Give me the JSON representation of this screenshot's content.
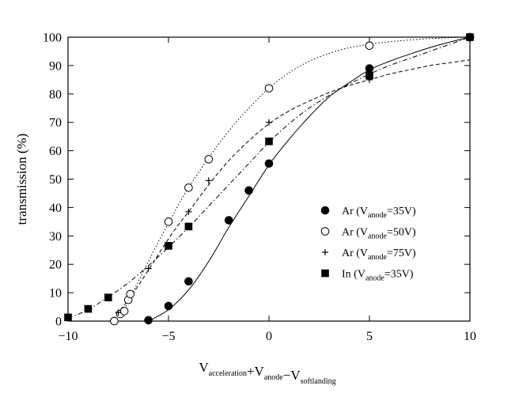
{
  "chart_data": {
    "type": "scatter",
    "title": "",
    "xlabel": {
      "parts": [
        {
          "text": "V",
          "sub": "acceleration"
        },
        {
          "text": "+V",
          "sub": "anode"
        },
        {
          "text": "−V",
          "sub": "softlanding"
        }
      ]
    },
    "ylabel": "transmission (%)",
    "xlim": [
      -10,
      10
    ],
    "ylim": [
      0,
      100
    ],
    "x_ticks": [
      -10,
      -5,
      0,
      5,
      10
    ],
    "x_tick_labels": [
      "−10",
      "−5",
      "0",
      "5",
      "10"
    ],
    "y_ticks": [
      0,
      10,
      20,
      30,
      40,
      50,
      60,
      70,
      80,
      90,
      100
    ],
    "y_tick_labels": [
      "0",
      "10",
      "20",
      "30",
      "40",
      "50",
      "60",
      "70",
      "80",
      "90",
      "100"
    ],
    "grid": false,
    "legend_position": "right-center",
    "series": [
      {
        "name": "Ar (Vanode=35V)",
        "legend": {
          "prefix": "Ar (V",
          "sub": "anode",
          "suffix": "=35V)"
        },
        "marker": "filled-circle",
        "line": "solid",
        "points": [
          [
            -6,
            0.3
          ],
          [
            -5,
            5.3
          ],
          [
            -4,
            14
          ],
          [
            -2,
            35.5
          ],
          [
            -1,
            46
          ],
          [
            0,
            55.5
          ],
          [
            5,
            89
          ],
          [
            10,
            100
          ]
        ],
        "fit": [
          [
            -6,
            0
          ],
          [
            -5,
            4
          ],
          [
            -4,
            11
          ],
          [
            -3,
            21
          ],
          [
            -2,
            33
          ],
          [
            -1,
            44
          ],
          [
            0,
            55
          ],
          [
            1,
            64
          ],
          [
            2,
            72
          ],
          [
            3,
            79
          ],
          [
            4,
            84
          ],
          [
            5,
            88.5
          ],
          [
            6,
            91.5
          ],
          [
            7,
            94
          ],
          [
            8,
            96.3
          ],
          [
            9,
            98.3
          ],
          [
            10,
            100
          ]
        ]
      },
      {
        "name": "Ar (Vanode=50V)",
        "legend": {
          "prefix": "Ar (V",
          "sub": "anode",
          "suffix": "=50V)"
        },
        "marker": "open-circle",
        "line": "dotted",
        "points": [
          [
            -7.7,
            0
          ],
          [
            -7.4,
            2.5
          ],
          [
            -7.2,
            3.5
          ],
          [
            -7,
            7.5
          ],
          [
            -6.9,
            9.5
          ],
          [
            -5,
            35
          ],
          [
            -4,
            47
          ],
          [
            -3,
            57
          ],
          [
            0,
            82
          ],
          [
            5,
            97
          ],
          [
            10,
            100
          ]
        ],
        "fit": [
          [
            -7.7,
            0
          ],
          [
            -7.3,
            3
          ],
          [
            -7,
            7
          ],
          [
            -6.5,
            14
          ],
          [
            -6,
            21
          ],
          [
            -5.5,
            28
          ],
          [
            -5,
            34.5
          ],
          [
            -4.5,
            41
          ],
          [
            -4,
            47
          ],
          [
            -3,
            57.5
          ],
          [
            -2,
            67
          ],
          [
            -1,
            75
          ],
          [
            0,
            82
          ],
          [
            1,
            87.5
          ],
          [
            2,
            91.5
          ],
          [
            3,
            94.3
          ],
          [
            4,
            96.3
          ],
          [
            5,
            97.5
          ],
          [
            6,
            98.4
          ],
          [
            7,
            99
          ],
          [
            8,
            99.5
          ],
          [
            9,
            99.8
          ],
          [
            10,
            100
          ]
        ]
      },
      {
        "name": "Ar (Vanode=75V)",
        "legend": {
          "prefix": "Ar (V",
          "sub": "anode",
          "suffix": "=75V)"
        },
        "marker": "plus",
        "line": "dashed",
        "points": [
          [
            -7.5,
            3
          ],
          [
            -6,
            18.5
          ],
          [
            -4,
            38.5
          ],
          [
            -3,
            49.5
          ],
          [
            0,
            70
          ],
          [
            5,
            85
          ],
          [
            10,
            100
          ]
        ],
        "fit": [
          [
            -7.8,
            0.5
          ],
          [
            -7.5,
            3
          ],
          [
            -7,
            7.5
          ],
          [
            -6.5,
            12.5
          ],
          [
            -6,
            18
          ],
          [
            -5.5,
            23.5
          ],
          [
            -5,
            29
          ],
          [
            -4.5,
            34
          ],
          [
            -4,
            38.5
          ],
          [
            -3,
            48
          ],
          [
            -2,
            56.5
          ],
          [
            -1,
            63.5
          ],
          [
            0,
            69.5
          ],
          [
            1,
            74
          ],
          [
            2,
            77.5
          ],
          [
            3,
            80.5
          ],
          [
            4,
            83
          ],
          [
            5,
            85
          ],
          [
            6,
            87
          ],
          [
            7,
            88.5
          ],
          [
            8,
            90
          ],
          [
            9,
            91
          ],
          [
            10,
            92
          ]
        ]
      },
      {
        "name": "In (Vanode=35V)",
        "legend": {
          "prefix": "In (V",
          "sub": "anode",
          "suffix": "=35V)"
        },
        "marker": "filled-square",
        "line": "dash-dot",
        "points": [
          [
            -10,
            1.3
          ],
          [
            -9,
            4.3
          ],
          [
            -8,
            8.3
          ],
          [
            -5,
            26.5
          ],
          [
            -4,
            33.3
          ],
          [
            0,
            63.3
          ],
          [
            5,
            86.5
          ],
          [
            10,
            100
          ]
        ],
        "fit": [
          [
            -10,
            1
          ],
          [
            -9,
            4
          ],
          [
            -8,
            8.5
          ],
          [
            -7,
            13.5
          ],
          [
            -6,
            19.5
          ],
          [
            -5,
            26
          ],
          [
            -4,
            33
          ],
          [
            -3,
            40.5
          ],
          [
            -2,
            48
          ],
          [
            -1,
            55.5
          ],
          [
            0,
            63
          ],
          [
            1,
            69.5
          ],
          [
            2,
            75
          ],
          [
            3,
            79.5
          ],
          [
            4,
            83.5
          ],
          [
            5,
            87
          ],
          [
            6,
            90
          ],
          [
            7,
            92.5
          ],
          [
            8,
            95
          ],
          [
            9,
            97.5
          ],
          [
            10,
            100
          ]
        ]
      }
    ]
  }
}
